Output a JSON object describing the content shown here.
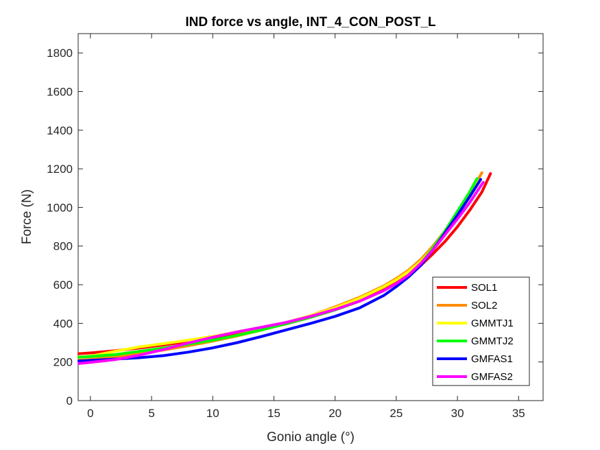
{
  "chart_data": {
    "type": "line",
    "title": "IND force vs angle, INT_4_CON_POST_L",
    "xlabel": "Gonio angle (°)",
    "ylabel": "Force (N)",
    "xlim": [
      -1,
      37
    ],
    "ylim": [
      0,
      1900
    ],
    "xticks": [
      0,
      5,
      10,
      15,
      20,
      25,
      30,
      35
    ],
    "yticks": [
      0,
      200,
      400,
      600,
      800,
      1000,
      1200,
      1400,
      1600,
      1800
    ],
    "grid": false,
    "legend_position": "bottom-right",
    "series": [
      {
        "name": "SOL1",
        "color": "#ff0000",
        "x": [
          -1,
          0,
          2,
          4,
          6,
          8,
          10,
          12,
          14,
          16,
          18,
          20,
          22,
          24,
          25,
          26,
          27,
          28,
          29,
          30,
          31,
          32,
          32.7
        ],
        "y": [
          243,
          247,
          258,
          272,
          288,
          306,
          324,
          345,
          368,
          397,
          431,
          470,
          515,
          575,
          610,
          650,
          700,
          760,
          825,
          900,
          985,
          1080,
          1175
        ]
      },
      {
        "name": "SOL2",
        "color": "#ff8c00",
        "x": [
          -1,
          0,
          2,
          4,
          6,
          8,
          10,
          12,
          14,
          16,
          18,
          20,
          22,
          24,
          25,
          26,
          27,
          28,
          29,
          30,
          31,
          32
        ],
        "y": [
          210,
          213,
          226,
          242,
          262,
          284,
          308,
          335,
          365,
          400,
          440,
          485,
          535,
          595,
          632,
          675,
          730,
          800,
          880,
          970,
          1070,
          1180
        ]
      },
      {
        "name": "GMMTJ1",
        "color": "#ffff00",
        "x": [
          -1,
          0,
          2,
          4,
          6,
          8,
          10,
          12,
          14,
          16,
          18,
          20,
          22,
          24,
          25,
          26,
          27,
          28,
          29,
          30,
          31,
          31.6
        ],
        "y": [
          225,
          230,
          255,
          278,
          295,
          313,
          332,
          355,
          378,
          405,
          440,
          480,
          530,
          590,
          625,
          668,
          720,
          790,
          870,
          960,
          1060,
          1145
        ]
      },
      {
        "name": "GMMTJ2",
        "color": "#00ff00",
        "x": [
          -1,
          0,
          2,
          4,
          6,
          8,
          10,
          12,
          14,
          16,
          18,
          20,
          22,
          24,
          25,
          26,
          27,
          28,
          29,
          30,
          31,
          31.6
        ],
        "y": [
          225,
          228,
          238,
          255,
          272,
          292,
          313,
          338,
          366,
          398,
          432,
          470,
          515,
          570,
          605,
          650,
          710,
          790,
          880,
          980,
          1080,
          1150
        ]
      },
      {
        "name": "GMFAS1",
        "color": "#0000ff",
        "x": [
          -1,
          0,
          2,
          4,
          6,
          8,
          10,
          12,
          14,
          16,
          18,
          20,
          22,
          24,
          25,
          26,
          27,
          28,
          29,
          30,
          31,
          31.9
        ],
        "y": [
          205,
          208,
          215,
          222,
          233,
          251,
          273,
          300,
          332,
          366,
          400,
          436,
          480,
          545,
          590,
          640,
          700,
          780,
          870,
          960,
          1055,
          1145
        ]
      },
      {
        "name": "GMFAS2",
        "color": "#ff00ff",
        "x": [
          -1,
          0,
          2,
          4,
          6,
          8,
          10,
          12,
          14,
          16,
          18,
          20,
          22,
          24,
          25,
          26,
          27,
          28,
          29,
          30,
          31,
          32.1
        ],
        "y": [
          192,
          198,
          212,
          235,
          265,
          298,
          328,
          356,
          380,
          405,
          436,
          472,
          515,
          570,
          606,
          650,
          710,
          780,
          860,
          940,
          1025,
          1130
        ]
      }
    ]
  }
}
